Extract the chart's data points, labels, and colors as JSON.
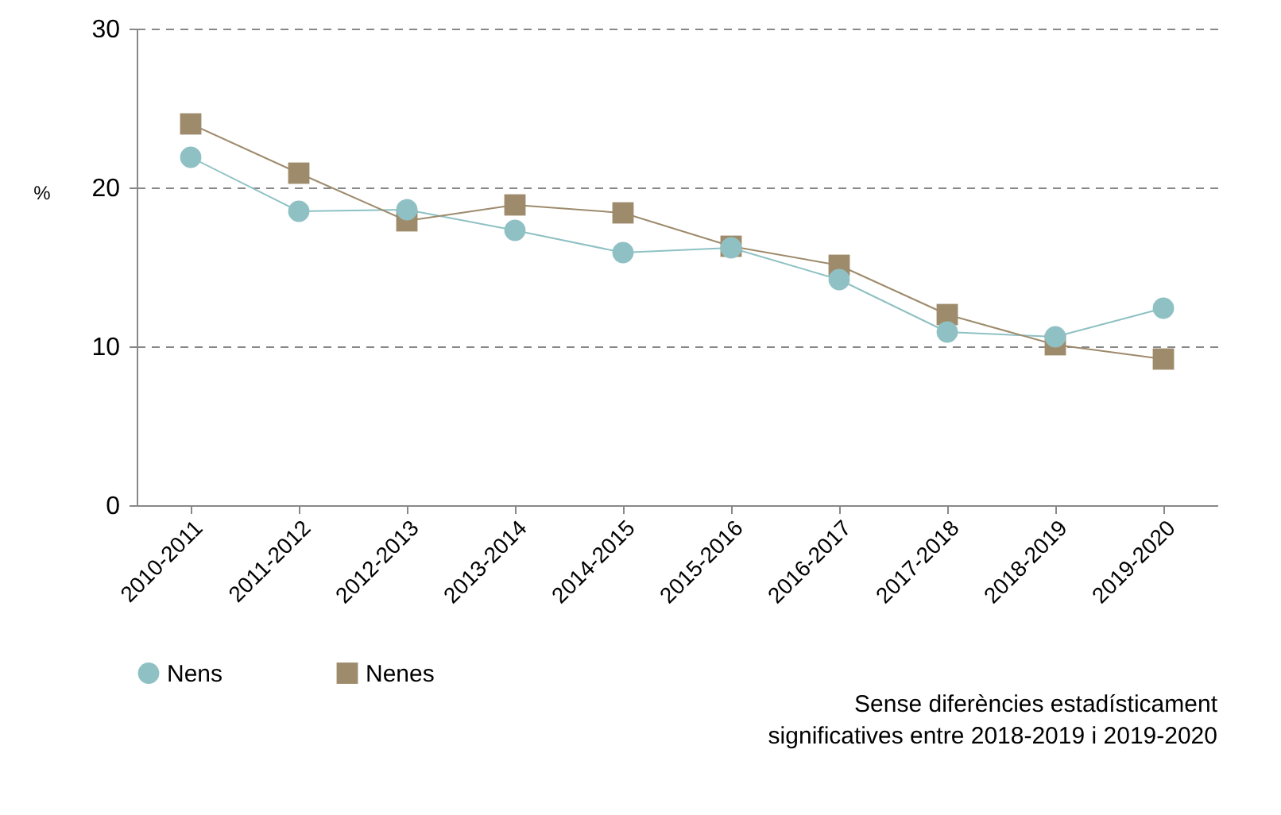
{
  "chart_data": {
    "type": "line",
    "ylabel": "%",
    "categories": [
      "2010-2011",
      "2011-2012",
      "2012-2013",
      "2013-2014",
      "2014-2015",
      "2015-2016",
      "2016-2017",
      "2017-2018",
      "2018-2019",
      "2019-2020"
    ],
    "series": [
      {
        "name": "Nens",
        "color": "#8fc1c4",
        "marker": "circle",
        "values": [
          21.9,
          18.5,
          18.6,
          17.3,
          15.9,
          16.2,
          14.2,
          10.9,
          10.6,
          12.4
        ]
      },
      {
        "name": "Nenes",
        "color": "#9e8b6c",
        "marker": "square",
        "values": [
          24.0,
          20.9,
          17.9,
          18.9,
          18.4,
          16.3,
          15.1,
          12.0,
          10.1,
          9.2
        ]
      }
    ],
    "ylim": [
      0,
      30
    ],
    "yticks": [
      0,
      10,
      20,
      30
    ],
    "grid": "y",
    "legend": "bottom left",
    "annotations": [
      "Sense diferències estadísticament significatives entre 2018-2019 i 2019-2020"
    ]
  }
}
